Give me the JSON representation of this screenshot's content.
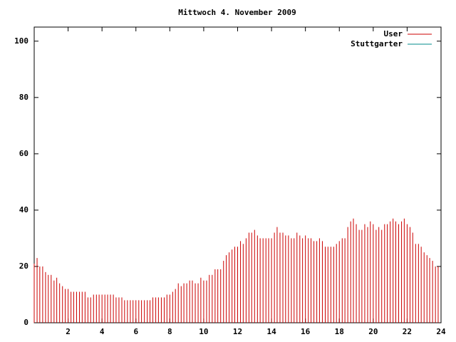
{
  "chart_data": {
    "type": "impulse",
    "title": "Mittwoch 4. November 2009",
    "x": [
      0,
      0.17,
      0.33,
      0.5,
      0.67,
      0.83,
      1,
      1.17,
      1.33,
      1.5,
      1.67,
      1.83,
      2,
      2.17,
      2.33,
      2.5,
      2.67,
      2.83,
      3,
      3.17,
      3.33,
      3.5,
      3.67,
      3.83,
      4,
      4.17,
      4.33,
      4.5,
      4.67,
      4.83,
      5,
      5.17,
      5.33,
      5.5,
      5.67,
      5.83,
      6,
      6.17,
      6.33,
      6.5,
      6.67,
      6.83,
      7,
      7.17,
      7.33,
      7.5,
      7.67,
      7.83,
      8,
      8.17,
      8.33,
      8.5,
      8.67,
      8.83,
      9,
      9.17,
      9.33,
      9.5,
      9.67,
      9.83,
      10,
      10.17,
      10.33,
      10.5,
      10.67,
      10.83,
      11,
      11.17,
      11.33,
      11.5,
      11.67,
      11.83,
      12,
      12.17,
      12.33,
      12.5,
      12.67,
      12.83,
      13,
      13.17,
      13.33,
      13.5,
      13.67,
      13.83,
      14,
      14.17,
      14.33,
      14.5,
      14.67,
      14.83,
      15,
      15.17,
      15.33,
      15.5,
      15.67,
      15.83,
      16,
      16.17,
      16.33,
      16.5,
      16.67,
      16.83,
      17,
      17.17,
      17.33,
      17.5,
      17.67,
      17.83,
      18,
      18.17,
      18.33,
      18.5,
      18.67,
      18.83,
      19,
      19.17,
      19.33,
      19.5,
      19.67,
      19.83,
      20,
      20.17,
      20.33,
      20.5,
      20.67,
      20.83,
      21,
      21.17,
      21.33,
      21.5,
      21.67,
      21.83,
      22,
      22.17,
      22.33,
      22.5,
      22.67,
      22.83,
      23,
      23.17,
      23.33,
      23.5,
      23.67,
      23.83
    ],
    "series": [
      {
        "name": "User",
        "color": "#cc0000",
        "values": [
          21,
          23,
          20,
          20,
          18,
          17,
          17,
          15,
          16,
          14,
          13,
          12,
          12,
          11,
          11,
          11,
          11,
          11,
          11,
          9,
          9,
          10,
          10,
          10,
          10,
          10,
          10,
          10,
          10,
          9,
          9,
          9,
          8,
          8,
          8,
          8,
          8,
          8,
          8,
          8,
          8,
          8,
          9,
          9,
          9,
          9,
          9,
          10,
          10,
          11,
          12,
          14,
          13,
          14,
          14,
          15,
          15,
          14,
          14,
          16,
          15,
          15,
          17,
          17,
          19,
          19,
          19,
          22,
          24,
          25,
          26,
          27,
          27,
          29,
          28,
          30,
          32,
          32,
          33,
          31,
          30,
          30,
          30,
          30,
          30,
          32,
          34,
          32,
          32,
          31,
          31,
          30,
          30,
          32,
          31,
          30,
          31,
          30,
          30,
          29,
          29,
          30,
          29,
          27,
          27,
          27,
          27,
          28,
          29,
          30,
          30,
          34,
          36,
          37,
          35,
          33,
          33,
          35,
          34,
          36,
          35,
          33,
          34,
          33,
          35,
          35,
          36,
          37,
          36,
          35,
          36,
          37,
          35,
          34,
          32,
          28,
          28,
          27,
          25,
          24,
          23,
          22,
          20,
          20
        ]
      },
      {
        "name": "Stuttgarter",
        "color": "#008b8b"
      }
    ],
    "xlim": [
      0,
      24
    ],
    "xticks": [
      2,
      4,
      6,
      8,
      10,
      12,
      14,
      16,
      18,
      20,
      22,
      24
    ],
    "ylim": [
      0,
      105
    ],
    "yticks": [
      0,
      20,
      40,
      60,
      80,
      100
    ]
  }
}
